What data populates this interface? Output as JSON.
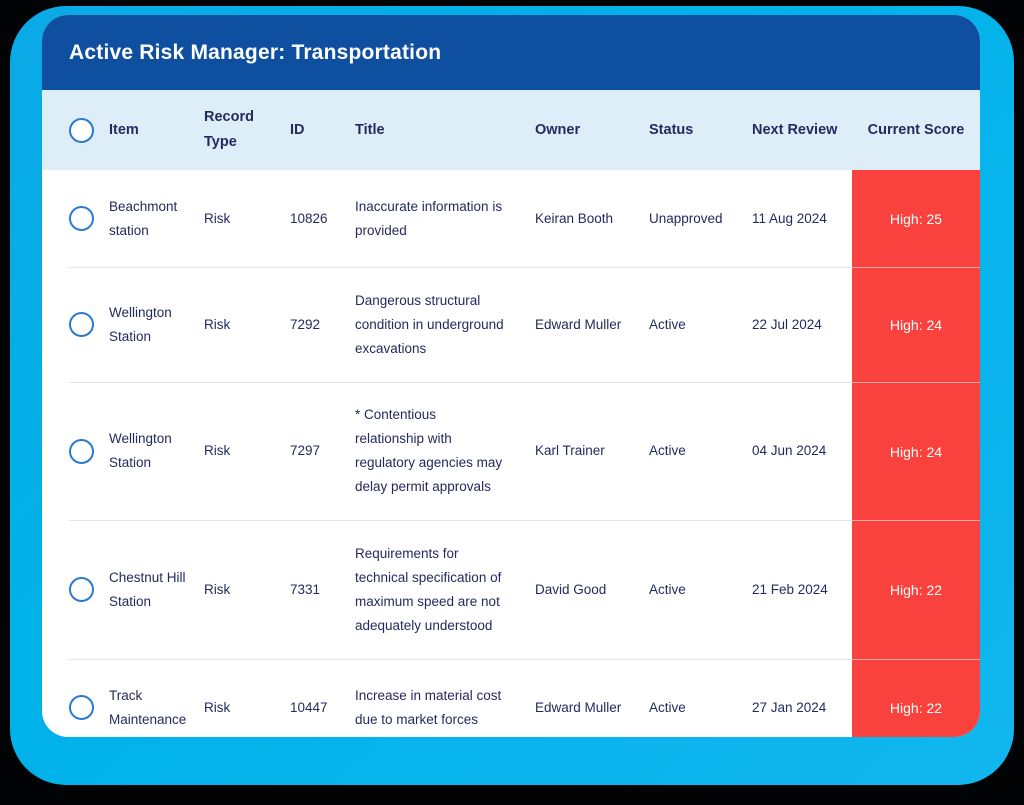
{
  "header": {
    "title": "Active Risk Manager: Transportation"
  },
  "columns": {
    "item": "Item",
    "record_type": "Record Type",
    "id": "ID",
    "title": "Title",
    "owner": "Owner",
    "status": "Status",
    "next_review": "Next Review",
    "current_score": "Current Score"
  },
  "rows": [
    {
      "item": "Beachmont station",
      "record_type": "Risk",
      "id": "10826",
      "title": "Inaccurate information is provided",
      "owner": "Keiran Booth",
      "status": "Unapproved",
      "next_review": "11 Aug 2024",
      "current_score": "High: 25"
    },
    {
      "item": "Wellington Station",
      "record_type": "Risk",
      "id": "7292",
      "title": "Dangerous structural condition in underground excavations",
      "owner": "Edward Muller",
      "status": "Active",
      "next_review": "22 Jul 2024",
      "current_score": "High: 24"
    },
    {
      "item": "Wellington Station",
      "record_type": "Risk",
      "id": "7297",
      "title": "* Contentious relationship with regulatory agencies may delay permit approvals",
      "owner": "Karl Trainer",
      "status": "Active",
      "next_review": "04 Jun 2024",
      "current_score": "High: 24"
    },
    {
      "item": "Chestnut Hill Station",
      "record_type": "Risk",
      "id": "7331",
      "title": "Requirements for technical specification of maximum speed are not adequately understood",
      "owner": "David Good",
      "status": "Active",
      "next_review": "21 Feb 2024",
      "current_score": "High: 22"
    },
    {
      "item": "Track Maintenance",
      "record_type": "Risk",
      "id": "10447",
      "title": "Increase in material cost due to market forces",
      "owner": "Edward Muller",
      "status": "Active",
      "next_review": "27 Jan 2024",
      "current_score": "High: 22"
    }
  ],
  "colors": {
    "app_header_bg": "#0e4f9f",
    "table_header_bg": "#ddeef9",
    "score_badge_bg": "#f9423d",
    "frame_accent": "#00b2ea",
    "text_navy": "#242a5e",
    "row_separator": "#e3e3e7",
    "checkbox_ring": "#2b7ad2"
  }
}
